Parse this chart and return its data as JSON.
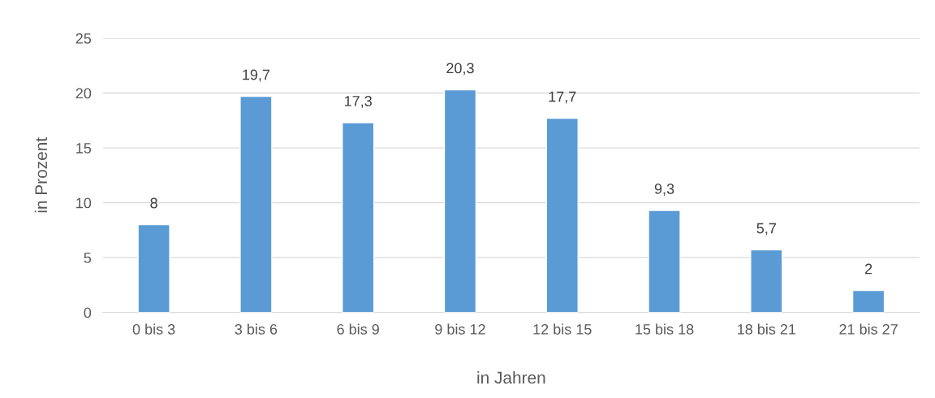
{
  "chart_data": {
    "type": "bar",
    "xlabel": "in Jahren",
    "ylabel": "in Prozent",
    "categories": [
      "0 bis 3",
      "3 bis 6",
      "6 bis 9",
      "9 bis 12",
      "12 bis 15",
      "15 bis 18",
      "18 bis 21",
      "21 bis 27"
    ],
    "values": [
      8,
      19.7,
      17.3,
      20.3,
      17.7,
      9.3,
      5.7,
      2
    ],
    "value_labels": [
      "8",
      "19,7",
      "17,3",
      "20,3",
      "17,7",
      "9,3",
      "5,7",
      "2"
    ],
    "color": "#5b9bd5",
    "ylim": [
      0,
      25
    ],
    "yticks": [
      0,
      5,
      10,
      15,
      20,
      25
    ],
    "grid": "y"
  }
}
